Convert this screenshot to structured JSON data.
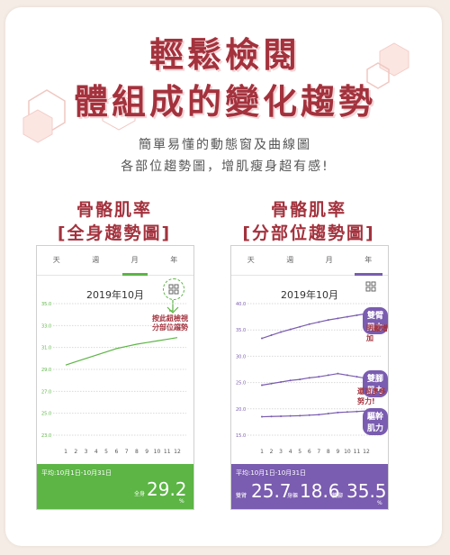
{
  "title_line1": "輕鬆檢閱",
  "title_line2": "體組成的變化趨勢",
  "subtitle_line1": "簡單易懂的動態窗及曲線圖",
  "subtitle_line2": "各部位趨勢圖，增肌瘦身超有感!",
  "left": {
    "heading": "骨骼肌率",
    "subheading": "[全身趨勢圖]",
    "tabs": [
      "天",
      "週",
      "月",
      "年"
    ],
    "active_tab": "月",
    "month_label": "2019年10月",
    "callout": [
      "按此鈕檢視",
      "分部位趨勢"
    ],
    "period": "平均:10月1日-10月31日",
    "total_label": "全身",
    "total_value": "29.2",
    "unit": "%",
    "accent": "#5cb545",
    "chart_data": {
      "type": "line",
      "x": [
        1,
        2,
        3,
        4,
        5,
        6,
        7,
        8,
        9,
        10,
        11,
        12
      ],
      "series": [
        {
          "values": [
            29.4,
            29.7,
            30.0,
            30.3,
            30.6,
            30.9,
            31.1,
            31.3,
            31.45,
            31.6,
            31.75,
            31.9
          ]
        }
      ],
      "y_ticks": [
        "35.0",
        "33.0",
        "31.0",
        "29.0",
        "27.0",
        "25.0",
        "23.0"
      ],
      "ylim": [
        23,
        35
      ]
    }
  },
  "right": {
    "heading": "骨骼肌率",
    "subheading": "[分部位趨勢圖]",
    "tabs": [
      "天",
      "週",
      "月",
      "年"
    ],
    "active_tab": "年",
    "month_label": "2019年10月",
    "period": "平均:10月1日-10月31日",
    "arms_label": "雙臂",
    "arms_value": "25.7",
    "trunk_label": "身軀",
    "trunk_value": "18.6",
    "legs_label": "雙腳",
    "legs_value": "35.5",
    "unit": "%",
    "pill_arms": "雙臂肌力",
    "note_arms": "明顯增加",
    "pill_legs": "雙腳肌力",
    "note_legs": "還可多多努力!",
    "pill_trunk": "驅幹肌力",
    "accent": "#7a5cb0",
    "chart_data": {
      "type": "line",
      "x": [
        1,
        2,
        3,
        4,
        5,
        6,
        7,
        8,
        9,
        10,
        11,
        12
      ],
      "series": [
        {
          "values": [
            33.4,
            34.0,
            34.6,
            35.1,
            35.6,
            36.1,
            36.5,
            36.9,
            37.2,
            37.5,
            37.8,
            38.1
          ]
        },
        {
          "values": [
            24.5,
            24.8,
            25.1,
            25.4,
            25.6,
            25.9,
            26.1,
            26.4,
            26.7,
            26.4,
            26.1,
            25.8
          ]
        },
        {
          "values": [
            18.5,
            18.55,
            18.6,
            18.65,
            18.7,
            18.8,
            18.9,
            19.1,
            19.3,
            19.4,
            19.5,
            19.6
          ]
        }
      ],
      "y_ticks": [
        "40.0",
        "35.0",
        "30.0",
        "25.0",
        "20.0",
        "15.0"
      ],
      "ylim": [
        15,
        40
      ]
    }
  }
}
